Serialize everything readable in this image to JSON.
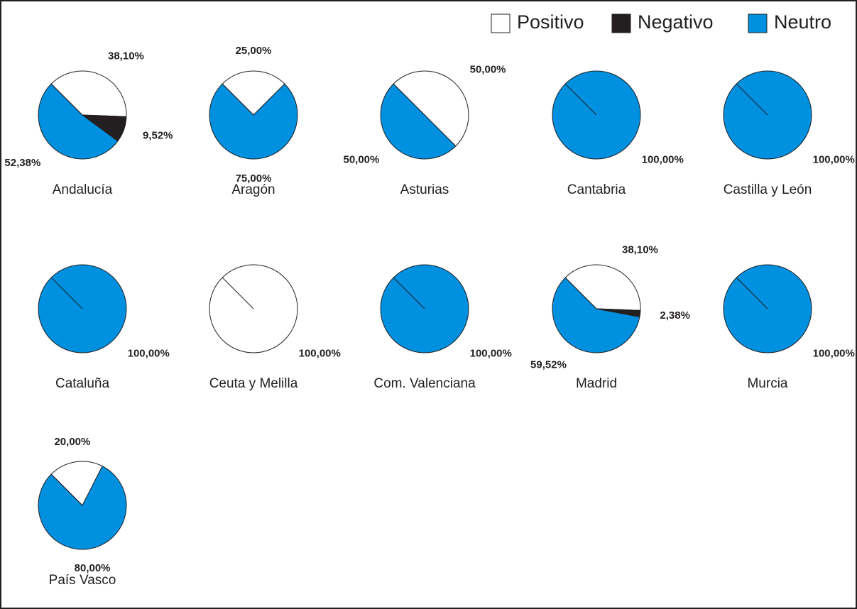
{
  "legend": [
    {
      "name": "Positivo",
      "color": "#ffffff"
    },
    {
      "name": "Negativo",
      "color": "#231f20"
    },
    {
      "name": "Neutro",
      "color": "#0090e0"
    }
  ],
  "chart_data": [
    {
      "type": "pie",
      "title": "Andalucía",
      "categories": [
        "Positivo",
        "Negativo",
        "Neutro"
      ],
      "values": [
        38.1,
        9.52,
        52.38
      ],
      "value_labels": [
        "38,10%",
        "9,52%",
        "52,38%"
      ]
    },
    {
      "type": "pie",
      "title": "Aragón",
      "categories": [
        "Positivo",
        "Neutro"
      ],
      "values": [
        25.0,
        75.0
      ],
      "value_labels": [
        "25,00%",
        "75,00%"
      ]
    },
    {
      "type": "pie",
      "title": "Asturias",
      "categories": [
        "Positivo",
        "Neutro"
      ],
      "values": [
        50.0,
        50.0
      ],
      "value_labels": [
        "50,00%",
        "50,00%"
      ]
    },
    {
      "type": "pie",
      "title": "Cantabria",
      "categories": [
        "Neutro"
      ],
      "values": [
        100.0
      ],
      "value_labels": [
        "100,00%"
      ]
    },
    {
      "type": "pie",
      "title": "Castilla y León",
      "categories": [
        "Neutro"
      ],
      "values": [
        100.0
      ],
      "value_labels": [
        "100,00%"
      ]
    },
    {
      "type": "pie",
      "title": "Cataluña",
      "categories": [
        "Neutro"
      ],
      "values": [
        100.0
      ],
      "value_labels": [
        "100,00%"
      ]
    },
    {
      "type": "pie",
      "title": "Ceuta y Melilla",
      "categories": [
        "Positivo"
      ],
      "values": [
        100.0
      ],
      "value_labels": [
        "100,00%"
      ]
    },
    {
      "type": "pie",
      "title": "Com. Valenciana",
      "categories": [
        "Neutro"
      ],
      "values": [
        100.0
      ],
      "value_labels": [
        "100,00%"
      ]
    },
    {
      "type": "pie",
      "title": "Madrid",
      "categories": [
        "Positivo",
        "Negativo",
        "Neutro"
      ],
      "values": [
        38.1,
        2.38,
        59.52
      ],
      "value_labels": [
        "38,10%",
        "2,38%",
        "59,52%"
      ]
    },
    {
      "type": "pie",
      "title": "Murcia",
      "categories": [
        "Neutro"
      ],
      "values": [
        100.0
      ],
      "value_labels": [
        "100,00%"
      ]
    },
    {
      "type": "pie",
      "title": "País Vasco",
      "categories": [
        "Positivo",
        "Neutro"
      ],
      "values": [
        20.0,
        80.0
      ],
      "value_labels": [
        "20,00%",
        "80,00%"
      ]
    }
  ]
}
